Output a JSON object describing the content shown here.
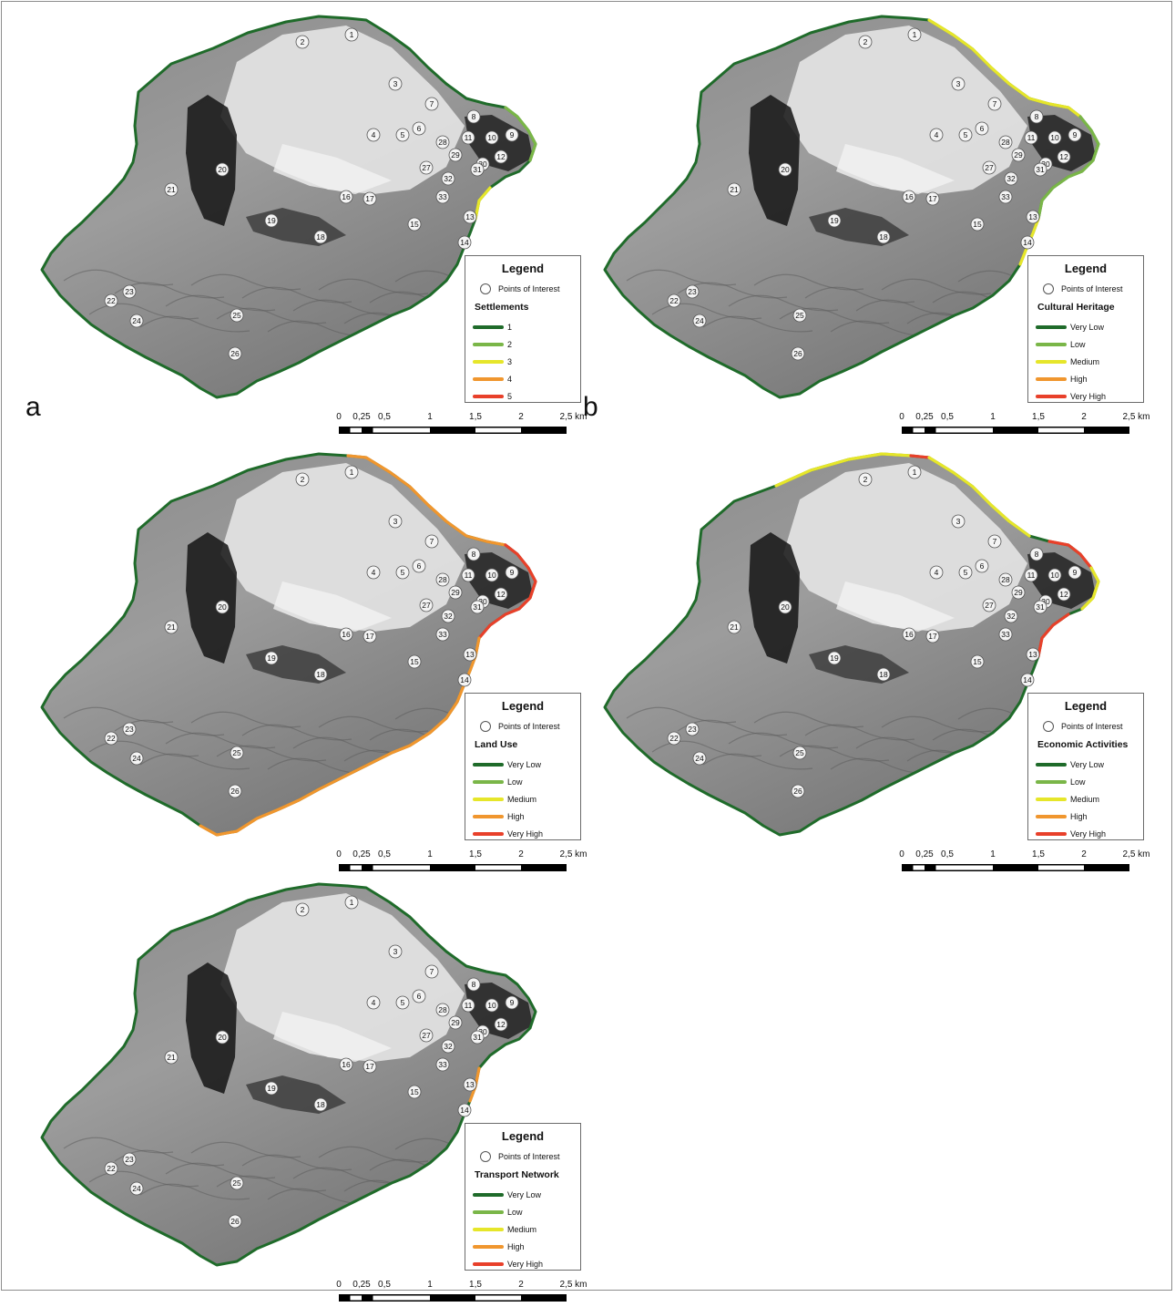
{
  "panels": [
    {
      "id": "a",
      "letter": "a",
      "layer": "Settlements",
      "levels": [
        "1",
        "2",
        "3",
        "4",
        "5"
      ]
    },
    {
      "id": "b",
      "letter": "b",
      "layer": "Cultural Heritage",
      "levels": [
        "Very Low",
        "Low",
        "Medium",
        "High",
        "Very High"
      ]
    },
    {
      "id": "c",
      "letter": "",
      "layer": "Land Use",
      "levels": [
        "Very Low",
        "Low",
        "Medium",
        "High",
        "Very High"
      ]
    },
    {
      "id": "d",
      "letter": "",
      "layer": "Economic Activities",
      "levels": [
        "Very Low",
        "Low",
        "Medium",
        "High",
        "Very High"
      ]
    },
    {
      "id": "e",
      "letter": "",
      "layer": "Transport Network",
      "levels": [
        "Very Low",
        "Low",
        "Medium",
        "High",
        "Very High"
      ]
    }
  ],
  "legend": {
    "title": "Legend",
    "poi_label": "Points of Interest"
  },
  "level_colors": [
    "#1f6b2a",
    "#7ab648",
    "#e6e62a",
    "#f0962e",
    "#e8402a"
  ],
  "scale": {
    "labels": [
      "0",
      "0,25",
      "0,5",
      "1",
      "1,5",
      "2",
      "2,5 km"
    ]
  },
  "points_of_interest": [
    "1",
    "2",
    "3",
    "4",
    "5",
    "6",
    "7",
    "8",
    "9",
    "10",
    "11",
    "12",
    "13",
    "14",
    "15",
    "16",
    "17",
    "18",
    "19",
    "20",
    "21",
    "22",
    "23",
    "24",
    "25",
    "26",
    "27",
    "28",
    "29",
    "30",
    "31",
    "32",
    "33"
  ]
}
